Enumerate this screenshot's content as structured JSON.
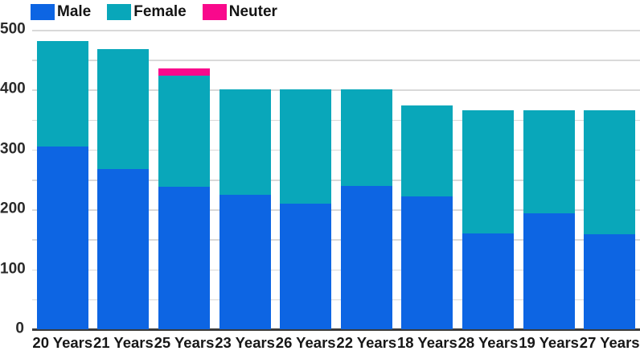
{
  "chart_data": {
    "type": "bar",
    "stacked": true,
    "title": "",
    "xlabel": "",
    "ylabel": "",
    "categories": [
      "20 Years",
      "21 Years",
      "25 Years",
      "23 Years",
      "26 Years",
      "22 Years",
      "18 Years",
      "28 Years",
      "19 Years",
      "27 Years"
    ],
    "series": [
      {
        "name": "Male",
        "color": "#0d65e3",
        "values": [
          305,
          268,
          238,
          224,
          210,
          239,
          222,
          160,
          194,
          159
        ]
      },
      {
        "name": "Female",
        "color": "#09a7ba",
        "values": [
          176,
          200,
          185,
          176,
          190,
          161,
          151,
          205,
          171,
          206
        ]
      },
      {
        "name": "Neuter",
        "color": "#f9098c",
        "values": [
          0,
          0,
          13,
          0,
          0,
          0,
          0,
          0,
          0,
          0
        ]
      }
    ],
    "totals": [
      481,
      468,
      436,
      400,
      400,
      400,
      373,
      365,
      365,
      365
    ],
    "ylim": [
      0,
      500
    ],
    "ytick_step": 100,
    "ytick_labels": [
      "0",
      "100",
      "200",
      "300",
      "400",
      "500"
    ],
    "grid_step": 50,
    "grid": true,
    "legend_position": "top-left"
  },
  "legend": {
    "items": [
      {
        "label": "Male",
        "color": "#0d65e3"
      },
      {
        "label": "Female",
        "color": "#09a7ba"
      },
      {
        "label": "Neuter",
        "color": "#f9098c"
      }
    ]
  },
  "colors": {
    "male": "#0d65e3",
    "female": "#09a7ba",
    "neuter": "#f9098c",
    "gridline": "#d9d9d9",
    "axis_line": "#3b3b3b",
    "text": "#171717",
    "background": "#ffffff"
  }
}
